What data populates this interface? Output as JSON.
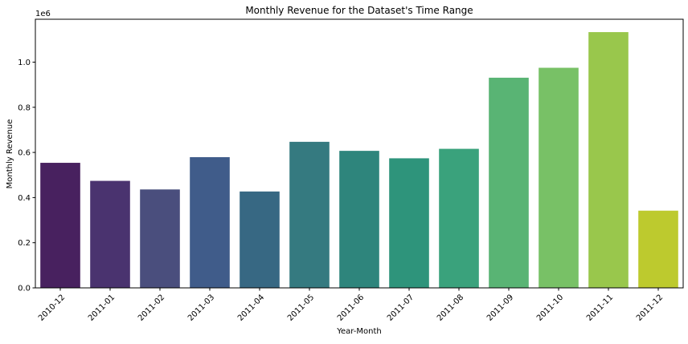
{
  "chart_data": {
    "type": "bar",
    "title": "Monthly Revenue for the Dataset's Time Range",
    "xlabel": "Year-Month",
    "ylabel": "Monthly Revenue",
    "y_offset_label": "1e6",
    "ylim": [
      0,
      1.19
    ],
    "yticks": [
      0.0,
      0.2,
      0.4,
      0.6,
      0.8,
      1.0
    ],
    "ytick_labels": [
      "0.0",
      "0.2",
      "0.4",
      "0.6",
      "0.8",
      "1.0"
    ],
    "categories": [
      "2010-12",
      "2011-01",
      "2011-02",
      "2011-03",
      "2011-04",
      "2011-05",
      "2011-06",
      "2011-07",
      "2011-08",
      "2011-09",
      "2011-10",
      "2011-11",
      "2011-12"
    ],
    "values": [
      0.554,
      0.474,
      0.436,
      0.579,
      0.427,
      0.647,
      0.607,
      0.574,
      0.616,
      0.931,
      0.975,
      1.133,
      0.342
    ],
    "colors": [
      "#48215f",
      "#4a336f",
      "#4a4e7d",
      "#405c8a",
      "#376883",
      "#357a80",
      "#2e857c",
      "#2e947b",
      "#3aa27c",
      "#59b474",
      "#78c166",
      "#99c74c",
      "#bdca2e"
    ],
    "grid": false,
    "legend": "none"
  }
}
